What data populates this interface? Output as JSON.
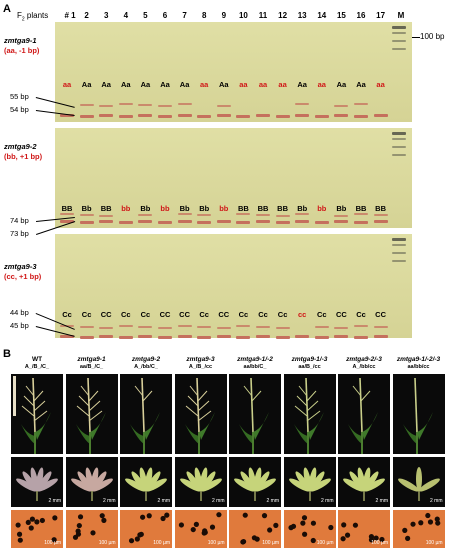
{
  "panel_a": {
    "letter": "A",
    "f2_label": "F",
    "f2_sub": "2",
    "f2_rest": " plants",
    "lanes": [
      "# 1",
      "2",
      "3",
      "4",
      "5",
      "6",
      "7",
      "8",
      "9",
      "10",
      "11",
      "12",
      "13",
      "14",
      "15",
      "16",
      "17",
      "M"
    ],
    "marker_label": "100 bp",
    "gels": [
      {
        "gene": "zmtga9-1",
        "genotype": "(aa, -1 bp)",
        "bp_upper": "55 bp",
        "bp_lower": "54 bp",
        "calls": [
          "aa",
          "Aa",
          "Aa",
          "Aa",
          "Aa",
          "Aa",
          "Aa",
          "aa",
          "Aa",
          "aa",
          "aa",
          "aa",
          "Aa",
          "aa",
          "Aa",
          "Aa",
          "aa"
        ],
        "red": [
          true,
          false,
          false,
          false,
          false,
          false,
          false,
          true,
          false,
          true,
          true,
          true,
          false,
          true,
          false,
          false,
          true
        ]
      },
      {
        "gene": "zmtga9-2",
        "genotype": "(bb, +1 bp)",
        "bp_upper": "74 bp",
        "bp_lower": "73 bp",
        "calls": [
          "BB",
          "Bb",
          "BB",
          "bb",
          "Bb",
          "bb",
          "Bb",
          "Bb",
          "bb",
          "BB",
          "BB",
          "BB",
          "Bb",
          "bb",
          "Bb",
          "BB",
          "BB"
        ],
        "red": [
          false,
          false,
          false,
          true,
          false,
          true,
          false,
          false,
          true,
          false,
          false,
          false,
          false,
          true,
          false,
          false,
          false
        ]
      },
      {
        "gene": "zmtga9-3",
        "genotype": "(cc, +1 bp)",
        "bp_upper": "44 bp",
        "bp_lower": "45 bp",
        "calls": [
          "Cc",
          "Cc",
          "CC",
          "Cc",
          "Cc",
          "CC",
          "CC",
          "Cc",
          "CC",
          "Cc",
          "Cc",
          "Cc",
          "cc",
          "Cc",
          "CC",
          "Cc",
          "CC"
        ],
        "red": [
          false,
          false,
          false,
          false,
          false,
          false,
          false,
          false,
          false,
          false,
          false,
          false,
          true,
          false,
          false,
          false,
          false
        ]
      }
    ]
  },
  "panel_b": {
    "letter": "B",
    "columns": [
      {
        "title": "WT",
        "sub": "A_/B_/C_"
      },
      {
        "title": "zmtga9-1",
        "sub": "aa/B_/C_"
      },
      {
        "title": "zmtga9-2",
        "sub": "A_/bb/C_"
      },
      {
        "title": "zmtga9-3",
        "sub": "A_/B_/cc"
      },
      {
        "title": "zmtga9-1/-2",
        "sub": "aa/bb/C_"
      },
      {
        "title": "zmtga9-1/-3",
        "sub": "aa/B_/cc"
      },
      {
        "title": "zmtga9-2/-3",
        "sub": "A_/bb/cc"
      },
      {
        "title": "zmtga9-1/-2/-3",
        "sub": "aa/bb/cc"
      }
    ],
    "scale_mm": "2 mm",
    "scale_um": "100 µm",
    "colors": {
      "tassel_bg": "#0a0a0a",
      "pollen_bg": "#e07a3c",
      "pollen": "#1a0c06",
      "gel": "#dcdaa0",
      "band": "#c46a5a",
      "red_call": "#d01818"
    }
  }
}
